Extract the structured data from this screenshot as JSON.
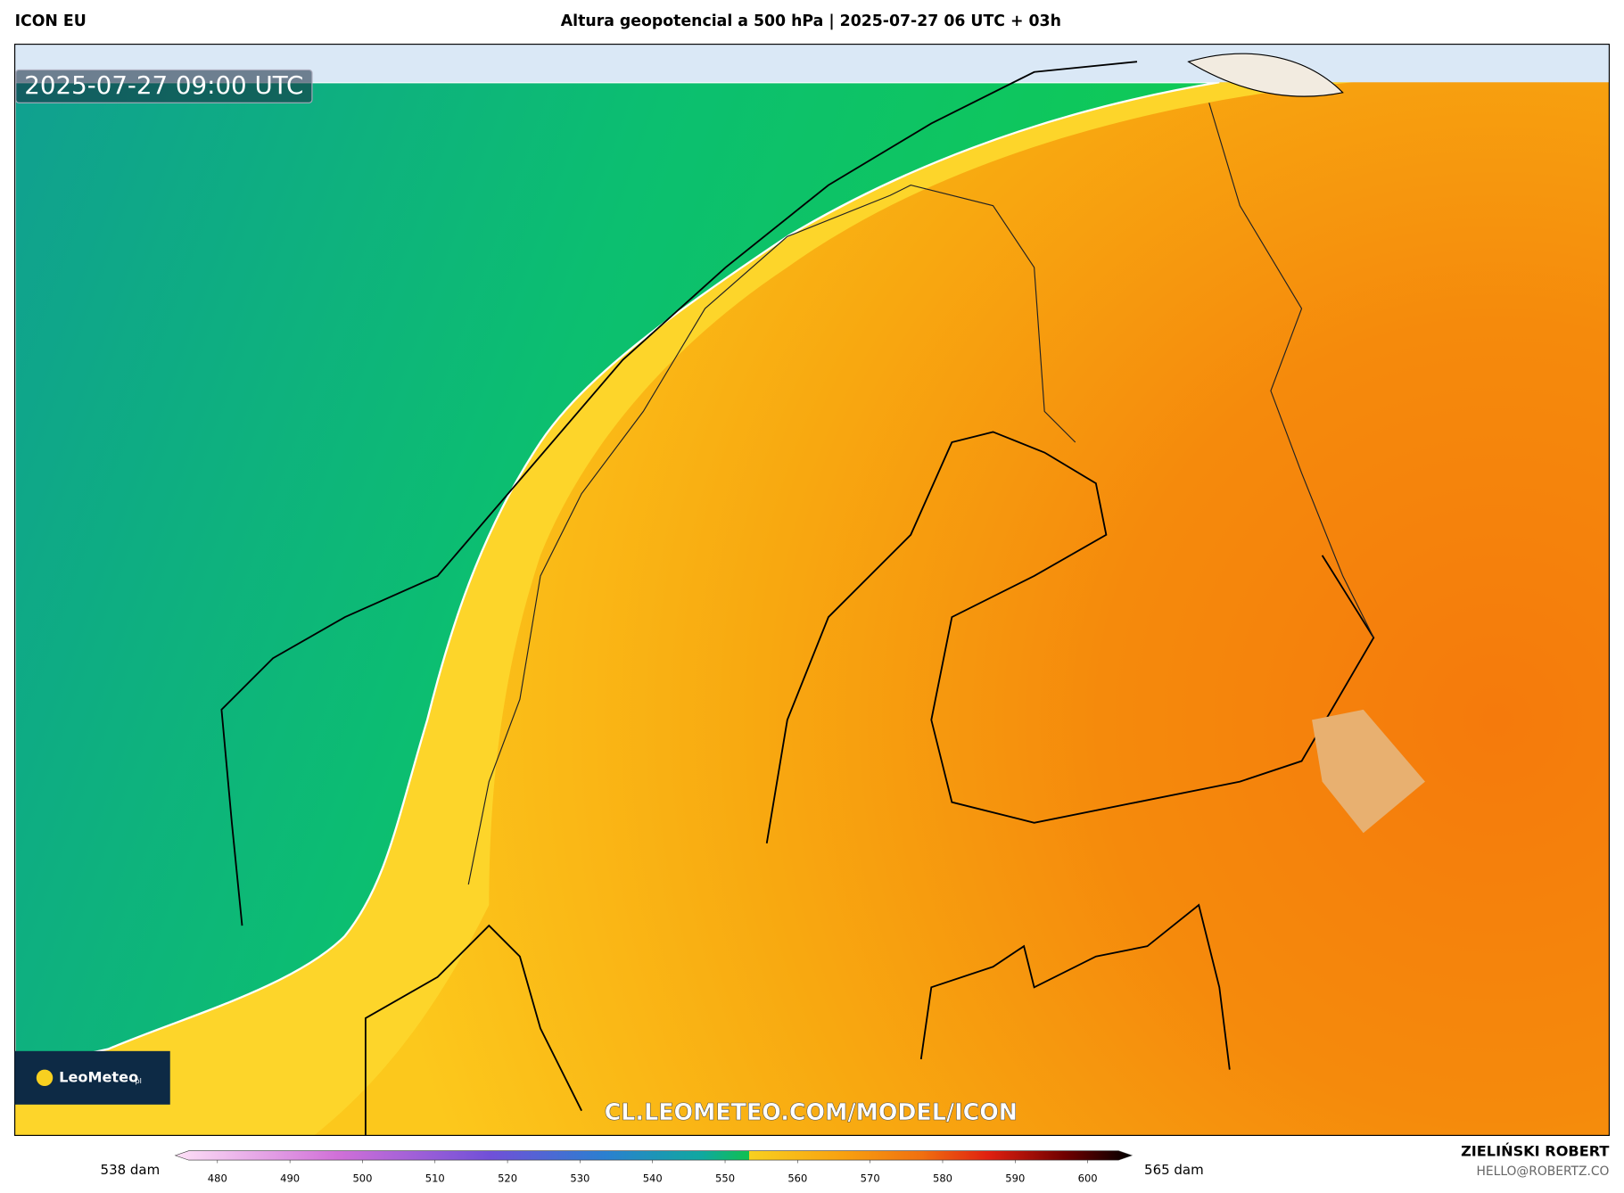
{
  "header": {
    "model": "ICON EU",
    "title": "Altura geopotencial a 500 hPa | 2025-07-27 06 UTC + 03h"
  },
  "map": {
    "timestamp": "2025-07-27 09:00 UTC",
    "watermark": "CL.LEOMETEO.COM/MODEL/ICON",
    "logo": "LeoMeteo",
    "logo_suffix": "pl"
  },
  "legend": {
    "min_label": "538 dam",
    "max_label": "565 dam",
    "ticks": [
      480,
      490,
      500,
      510,
      520,
      530,
      540,
      550,
      560,
      570,
      580,
      590,
      600
    ]
  },
  "credits": {
    "author": "ZIELIŃSKI ROBERT",
    "email": "HELLO@ROBERTZ.CO"
  }
}
